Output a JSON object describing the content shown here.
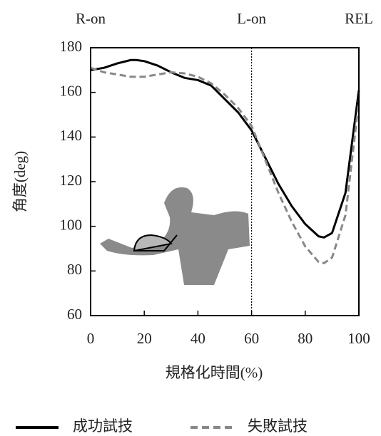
{
  "chart_data": {
    "type": "line",
    "y_label": "角度(deg)",
    "x_label": "規格化時間(%)",
    "annotations": [
      {
        "label": "R-on",
        "x": 0
      },
      {
        "label": "L-on",
        "x": 60
      },
      {
        "label": "REL",
        "x": 100
      }
    ],
    "vline": 60,
    "x": [
      0,
      5,
      10,
      15,
      17,
      20,
      25,
      30,
      35,
      40,
      45,
      50,
      55,
      60,
      65,
      70,
      75,
      80,
      85,
      87,
      90,
      95,
      100
    ],
    "series": [
      {
        "name": "成功試技",
        "color": "#000000",
        "dash": false,
        "values": [
          170,
          171,
          173,
          174.5,
          174.5,
          174,
          172,
          169,
          166.5,
          165.5,
          163,
          157,
          151,
          143,
          131,
          119,
          109,
          101,
          95.5,
          95,
          97,
          115,
          161
        ]
      },
      {
        "name": "失敗試技",
        "color": "#888888",
        "dash": true,
        "values": [
          171,
          169,
          168,
          167,
          167,
          167,
          168,
          169,
          168.5,
          167,
          164,
          159,
          153,
          145,
          130,
          115,
          102,
          91,
          84,
          83.5,
          86,
          105,
          156
        ]
      }
    ],
    "xlim": [
      0,
      100
    ],
    "xticks": [
      0,
      20,
      40,
      60,
      80,
      100
    ],
    "ylim": [
      60,
      180
    ],
    "yticks": [
      60,
      80,
      100,
      120,
      140,
      160,
      180
    ]
  }
}
